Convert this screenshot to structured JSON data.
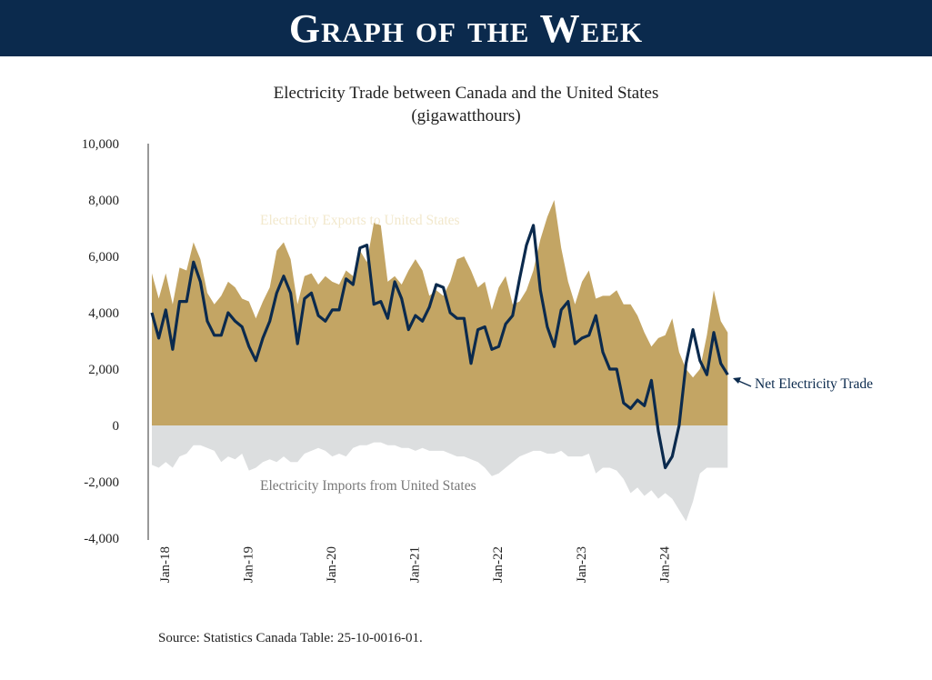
{
  "banner": {
    "title": "Graph of the Week"
  },
  "chart_data": {
    "type": "area",
    "title": "Electricity Trade between Canada and the United States",
    "subtitle": "(gigawatthours)",
    "xlabel": "",
    "ylabel": "",
    "ylim": [
      -4000,
      10000
    ],
    "yticks": [
      10000,
      8000,
      6000,
      4000,
      2000,
      0,
      -2000,
      -4000
    ],
    "ytick_labels": [
      "10,000",
      "8,000",
      "6,000",
      "4,000",
      "2,000",
      "0",
      "-2,000",
      "-4,000"
    ],
    "x_start": "Jan-18",
    "x_interval": "month",
    "xtick_labels": [
      {
        "label": "Jan-18",
        "index": 0
      },
      {
        "label": "Jan-19",
        "index": 12
      },
      {
        "label": "Jan-20",
        "index": 24
      },
      {
        "label": "Jan-21",
        "index": 36
      },
      {
        "label": "Jan-22",
        "index": 48
      },
      {
        "label": "Jan-23",
        "index": 60
      },
      {
        "label": "Jan-24",
        "index": 72
      }
    ],
    "series": [
      {
        "name": "Electricity Exports to United States",
        "color": "#c3a564",
        "values": [
          5400,
          4500,
          5400,
          4300,
          5600,
          5500,
          6500,
          5900,
          4700,
          4300,
          4600,
          5100,
          4900,
          4500,
          4400,
          3800,
          4400,
          4900,
          6200,
          6500,
          5900,
          4300,
          5300,
          5400,
          5000,
          5300,
          5100,
          5000,
          5500,
          5300,
          6200,
          5800,
          7200,
          7100,
          5100,
          5300,
          5000,
          5500,
          5900,
          5500,
          4600,
          4800,
          4600,
          5100,
          5900,
          6000,
          5500,
          4900,
          5100,
          4100,
          4900,
          5300,
          4300,
          4400,
          4800,
          5500,
          6600,
          7400,
          8000,
          6300,
          5100,
          4300,
          5100,
          5500,
          4500,
          4600,
          4600,
          4800,
          4300,
          4300,
          3900,
          3300,
          2800,
          3100,
          3200,
          3800,
          2600,
          2000,
          1700,
          2000,
          3200,
          4800,
          3700,
          3300
        ]
      },
      {
        "name": "Electricity Imports from United States",
        "color": "#dcdedf",
        "values": [
          -1400,
          -1500,
          -1300,
          -1500,
          -1100,
          -1000,
          -700,
          -700,
          -800,
          -900,
          -1300,
          -1100,
          -1200,
          -1000,
          -1600,
          -1500,
          -1300,
          -1200,
          -1300,
          -1100,
          -1300,
          -1300,
          -1000,
          -900,
          -800,
          -900,
          -1100,
          -1000,
          -1100,
          -800,
          -700,
          -700,
          -600,
          -600,
          -700,
          -700,
          -800,
          -800,
          -900,
          -800,
          -900,
          -900,
          -900,
          -1000,
          -1100,
          -1100,
          -1200,
          -1300,
          -1500,
          -1800,
          -1700,
          -1500,
          -1300,
          -1100,
          -1000,
          -900,
          -900,
          -1000,
          -1000,
          -900,
          -1100,
          -1100,
          -1100,
          -1000,
          -1700,
          -1500,
          -1500,
          -1600,
          -1900,
          -2400,
          -2200,
          -2500,
          -2300,
          -2600,
          -2400,
          -2600,
          -3000,
          -3400,
          -2700,
          -1700,
          -1500,
          -1500,
          -1500,
          -1500
        ]
      },
      {
        "name": "Net Electricity Trade",
        "color": "#0b2a4d",
        "values": [
          4000,
          3100,
          4100,
          2700,
          4400,
          4400,
          5800,
          5100,
          3700,
          3200,
          3200,
          4000,
          3700,
          3500,
          2800,
          2300,
          3100,
          3700,
          4700,
          5300,
          4700,
          2900,
          4500,
          4700,
          3900,
          3700,
          4100,
          4100,
          5200,
          5000,
          6300,
          6400,
          4300,
          4400,
          3800,
          5100,
          4500,
          3400,
          3900,
          3700,
          4200,
          5000,
          4900,
          4000,
          3800,
          3800,
          2200,
          3400,
          3500,
          2700,
          2800,
          3600,
          3900,
          5200,
          6400,
          7100,
          4800,
          3500,
          2800,
          4100,
          4400,
          2900,
          3100,
          3200,
          3900,
          2600,
          2000,
          2000,
          800,
          600,
          900,
          700,
          1600,
          -200,
          -1500,
          -1100,
          0,
          2200,
          3400,
          2300,
          1800,
          3300,
          2200,
          1800
        ]
      }
    ],
    "annotations": [
      {
        "text": "Electricity Exports to United States",
        "series": 0
      },
      {
        "text": "Electricity Imports from United States",
        "series": 1
      },
      {
        "text": "Net Electricity Trade",
        "series": 2
      }
    ]
  },
  "source": "Source: Statistics Canada Table: 25-10-0016-01."
}
